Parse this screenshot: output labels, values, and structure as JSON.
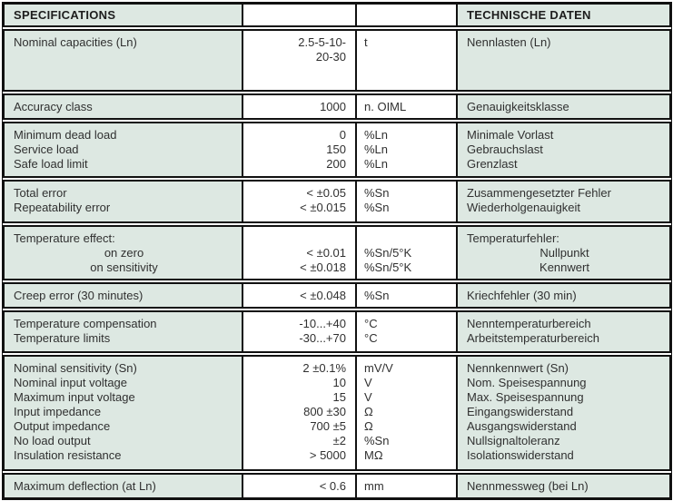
{
  "header": {
    "specifications": "SPECIFICATIONS",
    "values_col": "",
    "units_col": "",
    "technische_daten": "TECHNISCHE DATEN"
  },
  "colors": {
    "cell_green": "#dde8e2",
    "border_black": "#111111",
    "text": "#303030",
    "value_bg": "#ffffff"
  },
  "table": {
    "groups": [
      {
        "rows": [
          {
            "label": "Nominal capacities (Ln)",
            "value": "2.5-5-10-\n20-30",
            "unit": "t",
            "german": "Nennlasten (Ln)"
          }
        ]
      },
      {
        "rows": [
          {
            "label": "Accuracy class",
            "value": "1000",
            "unit": "n. OIML",
            "german": "Genauigkeitsklasse"
          }
        ]
      },
      {
        "rows": [
          {
            "label": "Minimum dead load",
            "value": "0",
            "unit": "%Ln",
            "german": "Minimale Vorlast"
          },
          {
            "label": "Service load",
            "value": "150",
            "unit": "%Ln",
            "german": "Gebrauchslast"
          },
          {
            "label": "Safe load limit",
            "value": "200",
            "unit": "%Ln",
            "german": "Grenzlast"
          }
        ]
      },
      {
        "rows": [
          {
            "label": "Total error",
            "value": "< ±0.05",
            "unit": "%Sn",
            "german": "Zusammengesetzter Fehler"
          },
          {
            "label": "Repeatability error",
            "value": "< ±0.015",
            "unit": "%Sn",
            "german": "Wiederholgenauigkeit"
          }
        ]
      },
      {
        "rows": [
          {
            "label": "Temperature effect:",
            "value": "",
            "unit": "",
            "german": "Temperaturfehler:"
          },
          {
            "label": "on zero",
            "value": "< ±0.01",
            "unit": "%Sn/5°K",
            "german": "Nullpunkt",
            "center": true
          },
          {
            "label": "on sensitivity",
            "value": "< ±0.018",
            "unit": "%Sn/5°K",
            "german": "Kennwert",
            "center": true
          }
        ]
      },
      {
        "rows": [
          {
            "label": "Creep error (30 minutes)",
            "value": "< ±0.048",
            "unit": "%Sn",
            "german": "Kriechfehler (30 min)"
          }
        ]
      },
      {
        "rows": [
          {
            "label": "Temperature compensation",
            "value": "-10...+40",
            "unit": "°C",
            "german": "Nenntemperaturbereich"
          },
          {
            "label": "Temperature limits",
            "value": "-30...+70",
            "unit": "°C",
            "german": "Arbeitstemperaturbereich"
          }
        ]
      },
      {
        "rows": [
          {
            "label": "Nominal sensitivity (Sn)",
            "value": "2 ±0.1%",
            "unit": "mV/V",
            "german": "Nennkennwert (Sn)"
          },
          {
            "label": "Nominal input voltage",
            "value": "10",
            "unit": "V",
            "german": "Nom. Speisespannung"
          },
          {
            "label": "Maximum input voltage",
            "value": "15",
            "unit": "V",
            "german": "Max. Speisespannung"
          },
          {
            "label": "Input impedance",
            "value": "800 ±30",
            "unit": "Ω",
            "german": "Eingangswiderstand"
          },
          {
            "label": "Output impedance",
            "value": "700 ±5",
            "unit": "Ω",
            "german": "Ausgangswiderstand"
          },
          {
            "label": "No load output",
            "value": "±2",
            "unit": "%Sn",
            "german": "Nullsignaltoleranz"
          },
          {
            "label": "Insulation resistance",
            "value": "> 5000",
            "unit": "MΩ",
            "german": "Isolationswiderstand"
          }
        ]
      },
      {
        "rows": [
          {
            "label": "Maximum deflection (at Ln)",
            "value": "< 0.6",
            "unit": "mm",
            "german": "Nennmessweg (bei Ln)"
          }
        ]
      }
    ]
  }
}
